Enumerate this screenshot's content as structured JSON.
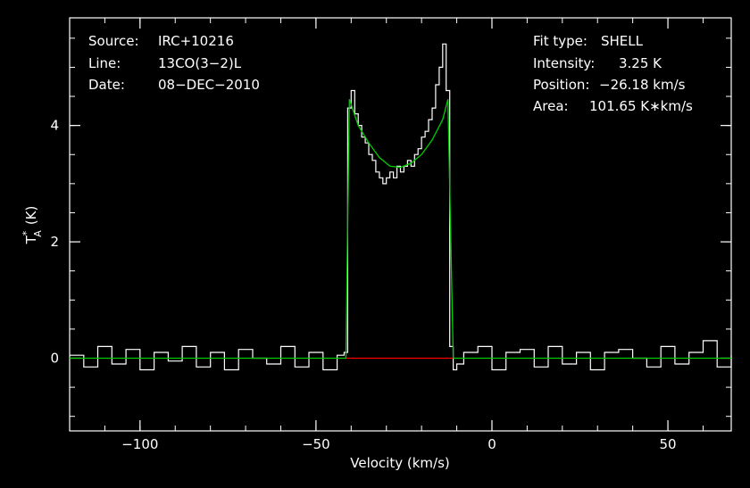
{
  "chart_data": {
    "type": "line",
    "title": "",
    "xlabel": "Velocity (km/s)",
    "ylabel": "T",
    "ylabel_super": "*",
    "ylabel_sub": "A",
    "ylabel_unit": "(K)",
    "xlim": [
      -120,
      68
    ],
    "ylim": [
      -1.25,
      5.85
    ],
    "xticks": [
      -100,
      -50,
      0,
      50
    ],
    "xtick_labels": [
      "−100",
      "−50",
      "0",
      "50"
    ],
    "yticks": [
      0,
      2,
      4
    ],
    "ytick_labels": [
      "0",
      "2",
      "4"
    ],
    "grid": false,
    "annotations_left": [
      {
        "key": "Source:",
        "value": "IRC+10216"
      },
      {
        "key": "Line:",
        "value": "13CO(3−2)L"
      },
      {
        "key": "Date:",
        "value": "08−DEC−2010"
      }
    ],
    "annotations_right": [
      {
        "key": "Fit type:",
        "value": "SHELL"
      },
      {
        "key": "Intensity:",
        "value": "3.25 K"
      },
      {
        "key": "Position:",
        "value": "−26.18 km/s"
      },
      {
        "key": "Area:",
        "value": "101.65 K∗km/s"
      }
    ],
    "series": [
      {
        "role": "spectrum",
        "color": "#ffffff",
        "x": [
          -120,
          -116,
          -112,
          -108,
          -104,
          -100,
          -96,
          -92,
          -88,
          -84,
          -80,
          -76,
          -72,
          -68,
          -64,
          -60,
          -56,
          -52,
          -48,
          -44,
          -42,
          -41,
          -40,
          -39,
          -38,
          -37,
          -36,
          -35,
          -34,
          -33,
          -32,
          -31,
          -30,
          -29,
          -28,
          -27,
          -26,
          -25,
          -24,
          -23,
          -22,
          -21,
          -20,
          -19,
          -18,
          -17,
          -16,
          -15,
          -14,
          -13,
          -12,
          -11,
          -10,
          -8,
          -4,
          0,
          4,
          8,
          12,
          16,
          20,
          24,
          28,
          32,
          36,
          40,
          44,
          48,
          52,
          56,
          60,
          64,
          68
        ],
        "y": [
          0.05,
          -0.15,
          0.2,
          -0.1,
          0.15,
          -0.2,
          0.1,
          -0.05,
          0.2,
          -0.15,
          0.1,
          -0.2,
          0.15,
          0.0,
          -0.1,
          0.2,
          -0.15,
          0.1,
          -0.2,
          0.05,
          0.1,
          4.3,
          4.6,
          4.2,
          4.0,
          3.8,
          3.7,
          3.5,
          3.4,
          3.2,
          3.1,
          3.0,
          3.1,
          3.2,
          3.1,
          3.3,
          3.2,
          3.3,
          3.4,
          3.3,
          3.5,
          3.6,
          3.8,
          3.9,
          4.1,
          4.3,
          4.7,
          5.0,
          5.4,
          4.6,
          0.2,
          -0.2,
          -0.1,
          0.1,
          0.2,
          -0.2,
          0.1,
          0.15,
          -0.15,
          0.2,
          -0.1,
          0.1,
          -0.2,
          0.1,
          0.15,
          0.0,
          -0.15,
          0.2,
          -0.1,
          0.1,
          0.3,
          -0.15,
          0.05
        ]
      },
      {
        "role": "fit",
        "color": "#00cc00",
        "x": [
          -120,
          -41.5,
          -40.5,
          -38,
          -35,
          -32,
          -29,
          -26,
          -23,
          -20,
          -17,
          -14,
          -12.5,
          -11,
          68
        ],
        "y": [
          0,
          0,
          4.45,
          4.0,
          3.7,
          3.45,
          3.3,
          3.28,
          3.35,
          3.5,
          3.75,
          4.1,
          4.45,
          0,
          0
        ]
      },
      {
        "role": "baseline-window",
        "color": "#ff0000",
        "x": [
          -41.5,
          -11
        ],
        "y": [
          0,
          0
        ]
      }
    ]
  }
}
